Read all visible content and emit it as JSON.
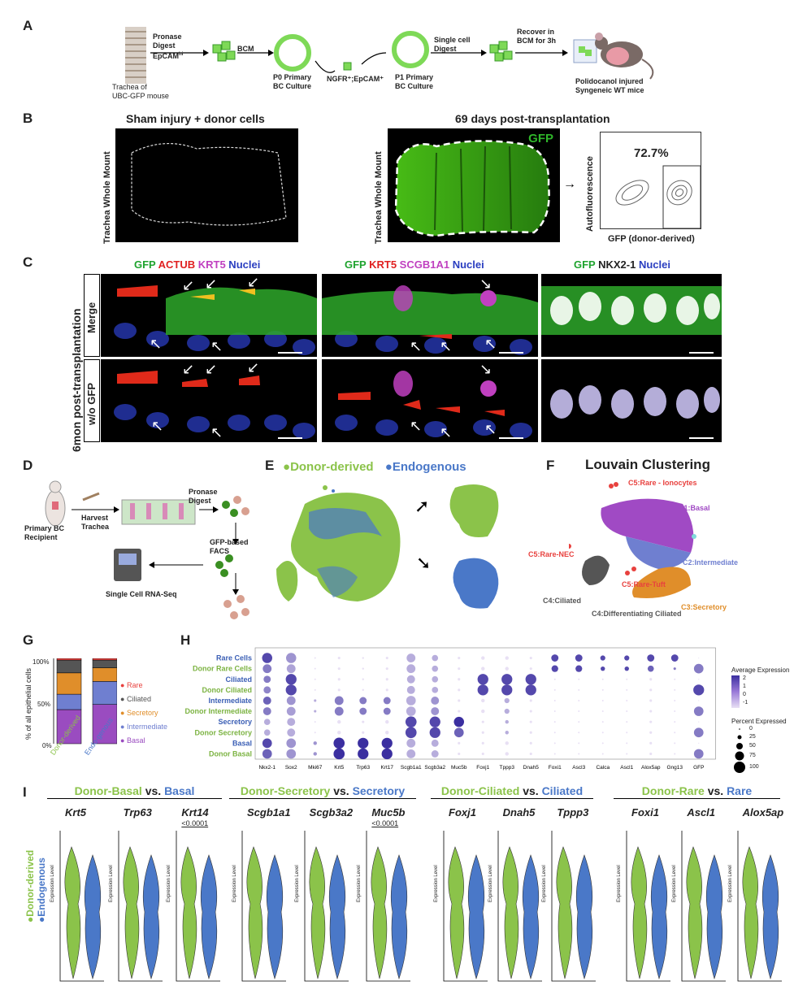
{
  "panelA": {
    "letter": "A",
    "trachea_label_1": "Trachea of",
    "trachea_label_2": "UBC-GFP mouse",
    "step1_1": "Pronase",
    "step1_2": "Digest",
    "step1_3": "EpCAM",
    "step1_3_sup": "hi",
    "step2": "BCM",
    "p0_1": "P0 Primary",
    "p0_2": "BC Culture",
    "ngfr": "NGFR⁺;EpCAM⁺",
    "step3_1": "Single cell",
    "step3_2": "Digest",
    "p1_1": "P1 Primary",
    "p1_2": "BC Culture",
    "step4_1": "Recover in",
    "step4_2": "BCM for 3h",
    "mouse_1": "Polidocanol injured",
    "mouse_2": "Syngeneic WT mice"
  },
  "panelB": {
    "letter": "B",
    "title_left": "Sham injury + donor cells",
    "title_right": "69 days post-transplantation",
    "ylab": "Trachea Whole Mount",
    "gfp": "GFP",
    "percent": "72.7%",
    "flow_y": "Autofluorescence",
    "flow_x": "GFP (donor-derived)"
  },
  "panelC": {
    "letter": "C",
    "side_label": "6mon post-transplantation",
    "row1": "Merge",
    "row2": "w/o GFP",
    "col1": [
      {
        "t": "GFP",
        "c": "#1fa32e"
      },
      {
        "t": " ACTUB",
        "c": "#e02020"
      },
      {
        "t": " KRT5",
        "c": "#c040c0"
      },
      {
        "t": " Nuclei",
        "c": "#2a3ec0"
      }
    ],
    "col2": [
      {
        "t": "GFP",
        "c": "#1fa32e"
      },
      {
        "t": " KRT5",
        "c": "#e02020"
      },
      {
        "t": " SCGB1A1",
        "c": "#c040c0"
      },
      {
        "t": " Nuclei",
        "c": "#2a3ec0"
      }
    ],
    "col3": [
      {
        "t": "GFP",
        "c": "#1fa32e"
      },
      {
        "t": " NKX2-1",
        "c": "#222222"
      },
      {
        "t": " Nuclei",
        "c": "#2a3ec0"
      }
    ]
  },
  "panelD": {
    "letter": "D",
    "recipient_1": "Primary BC",
    "recipient_2": "Recipient",
    "harvest_1": "Harvest",
    "harvest_2": "Trachea",
    "digest_1": "Pronase",
    "digest_2": "Digest",
    "facs_1": "GFP-based",
    "facs_2": "FACS",
    "seq": "Single Cell RNA-Seq"
  },
  "panelE": {
    "letter": "E",
    "legend_donor": "Donor-derived",
    "legend_endo": "Endogenous"
  },
  "panelF": {
    "letter": "F",
    "title": "Louvain Clustering",
    "labels": [
      {
        "t": "C5:Rare - Ionocytes",
        "c": "#e8413e"
      },
      {
        "t": "C1:Basal",
        "c": "#a04ac4"
      },
      {
        "t": "C5:Rare-NEC",
        "c": "#e8413e"
      },
      {
        "t": "C2:Intermediate",
        "c": "#6f7fd0"
      },
      {
        "t": "C5:Rare-Tuft",
        "c": "#e8413e"
      },
      {
        "t": "C4:Ciliated",
        "c": "#555555"
      },
      {
        "t": "C3:Secretory",
        "c": "#e08e2a"
      },
      {
        "t": "C4:Differentiating Ciliated",
        "c": "#555555"
      }
    ]
  },
  "panelG": {
    "letter": "G",
    "ylabel": "% of all epithelial cells",
    "yticks": [
      "100%",
      "50%",
      "0%"
    ],
    "xlabels": [
      "Donor-derived",
      "Endo-genous"
    ],
    "legend": [
      {
        "t": "Rare",
        "c": "#e8413e"
      },
      {
        "t": "Ciliated",
        "c": "#555555"
      },
      {
        "t": "Secretory",
        "c": "#e08e2a"
      },
      {
        "t": "Intermediate",
        "c": "#6f7fd0"
      },
      {
        "t": "Basal",
        "c": "#9a4cc0"
      }
    ]
  },
  "panelH": {
    "letter": "H",
    "legend_expr_title": "Average Expression",
    "legend_expr_ticks": [
      "2",
      "1",
      "0",
      "-1"
    ],
    "legend_pct_title": "Percent Expressed",
    "legend_pct_ticks": [
      "0",
      "25",
      "50",
      "75",
      "100"
    ]
  },
  "panelI": {
    "letter": "I",
    "side_donor": "Donor-derived",
    "side_endo": "Endogenous",
    "ylabel": "Expression Level",
    "groups": [
      {
        "a": "Donor-Basal",
        "b": "Basal",
        "genes": [
          "Krt5",
          "Trp63",
          "Krt14"
        ],
        "pval": "<0.0001",
        "pidx": 2
      },
      {
        "a": "Donor-Secretory",
        "b": "Secretory",
        "genes": [
          "Scgb1a1",
          "Scgb3a2",
          "Muc5b"
        ],
        "pval": "<0.0001",
        "pidx": 2
      },
      {
        "a": "Donor-Ciliated",
        "b": "Ciliated",
        "genes": [
          "Foxj1",
          "Dnah5",
          "Tppp3"
        ],
        "pval": "",
        "pidx": -1
      },
      {
        "a": "Donor-Rare",
        "b": "Rare",
        "genes": [
          "Foxi1",
          "Ascl1",
          "Alox5ap"
        ],
        "pval": "",
        "pidx": -1
      }
    ],
    "vs": "vs."
  },
  "chart_data": [
    {
      "type": "bar",
      "id": "G",
      "categories": [
        "Donor-derived",
        "Endo-genous"
      ],
      "series": [
        {
          "name": "Basal",
          "values": [
            40,
            46
          ]
        },
        {
          "name": "Intermediate",
          "values": [
            18,
            27
          ]
        },
        {
          "name": "Secretory",
          "values": [
            25,
            16
          ]
        },
        {
          "name": "Ciliated",
          "values": [
            15,
            9
          ]
        },
        {
          "name": "Rare",
          "values": [
            2,
            2
          ]
        }
      ],
      "ylabel": "% of all epithelial cells",
      "ylim": [
        0,
        100
      ]
    },
    {
      "type": "scatter",
      "id": "H",
      "rows": [
        "Rare Cells",
        "Donor Rare Cells",
        "Ciliated",
        "Donor Ciliated",
        "Intermediate",
        "Donor Intermediate",
        "Secretory",
        "Donor Secretory",
        "Basal",
        "Donor Basal"
      ],
      "row_colors": [
        "#3b5fb5",
        "#7cb342",
        "#3b5fb5",
        "#7cb342",
        "#3b5fb5",
        "#7cb342",
        "#3b5fb5",
        "#7cb342",
        "#3b5fb5",
        "#7cb342"
      ],
      "genes": [
        "Nkx2-1",
        "Sox2",
        "Mki67",
        "Krt5",
        "Trp63",
        "Krt17",
        "Scgb1a1",
        "Scgb3a2",
        "Muc5b",
        "Foxj1",
        "Tppp3",
        "Dnah5",
        "Foxi1",
        "Ascl3",
        "Calca",
        "Ascl1",
        "Alox5ap",
        "Gng13",
        "GFP"
      ],
      "pct": [
        [
          80,
          80,
          2,
          5,
          3,
          5,
          60,
          30,
          5,
          10,
          10,
          5,
          40,
          40,
          20,
          20,
          40,
          40,
          0
        ],
        [
          60,
          60,
          2,
          5,
          3,
          5,
          60,
          30,
          5,
          10,
          10,
          5,
          35,
          35,
          15,
          15,
          30,
          5,
          70
        ],
        [
          40,
          90,
          2,
          5,
          3,
          5,
          50,
          30,
          5,
          90,
          90,
          90,
          2,
          2,
          2,
          2,
          5,
          2,
          0
        ],
        [
          40,
          90,
          2,
          5,
          3,
          5,
          50,
          30,
          5,
          90,
          90,
          90,
          2,
          2,
          2,
          2,
          5,
          2,
          90
        ],
        [
          50,
          60,
          5,
          60,
          40,
          40,
          70,
          50,
          5,
          10,
          20,
          5,
          2,
          2,
          2,
          2,
          5,
          2,
          0
        ],
        [
          50,
          60,
          5,
          60,
          40,
          40,
          70,
          50,
          5,
          10,
          20,
          5,
          2,
          2,
          2,
          2,
          5,
          2,
          70
        ],
        [
          30,
          50,
          2,
          10,
          5,
          10,
          95,
          90,
          80,
          5,
          10,
          5,
          2,
          2,
          2,
          2,
          5,
          2,
          0
        ],
        [
          30,
          50,
          2,
          10,
          5,
          10,
          95,
          90,
          70,
          5,
          10,
          5,
          2,
          2,
          2,
          2,
          5,
          2,
          70
        ],
        [
          70,
          70,
          10,
          95,
          90,
          90,
          60,
          40,
          5,
          5,
          10,
          5,
          2,
          2,
          2,
          2,
          5,
          2,
          0
        ],
        [
          70,
          70,
          10,
          95,
          90,
          90,
          60,
          40,
          5,
          5,
          10,
          5,
          2,
          2,
          2,
          2,
          5,
          2,
          70
        ]
      ],
      "expr": [
        [
          2,
          0.5,
          -1,
          -1,
          -1,
          -1,
          0,
          0,
          -1,
          -1,
          -1,
          -1,
          2,
          2,
          2,
          2,
          2,
          2,
          -1
        ],
        [
          1,
          0.2,
          -1,
          -1,
          -1,
          -1,
          0,
          0,
          -1,
          -1,
          -1,
          -1,
          2,
          2,
          2,
          2,
          1.5,
          1,
          1
        ],
        [
          1,
          2,
          -1,
          -1,
          -1,
          -1,
          0,
          0,
          -1,
          2,
          2,
          2,
          -1,
          -1,
          -1,
          -1,
          -1,
          -1,
          -1
        ],
        [
          0.8,
          2,
          -1,
          -1,
          -1,
          -1,
          0,
          0,
          -1,
          2,
          2,
          2,
          -1,
          -1,
          -1,
          -1,
          -1,
          -1,
          2
        ],
        [
          1.5,
          0.5,
          0,
          1,
          1,
          1,
          0,
          0.5,
          -1,
          -1,
          0,
          -1,
          -1,
          -1,
          -1,
          -1,
          -1,
          -1,
          -1
        ],
        [
          1,
          0.3,
          0,
          1,
          1,
          1,
          0,
          0.5,
          -1,
          -1,
          0,
          -1,
          -1,
          -1,
          -1,
          -1,
          -1,
          -1,
          1
        ],
        [
          0,
          0,
          -1,
          -1,
          -1,
          -1,
          2,
          2,
          2.5,
          -1,
          0,
          -1,
          -1,
          -1,
          -1,
          -1,
          -1,
          -1,
          -1
        ],
        [
          0,
          0,
          -1,
          -1,
          -1,
          -1,
          2,
          2,
          1.5,
          -1,
          0,
          -1,
          -1,
          -1,
          -1,
          -1,
          -1,
          -1,
          1
        ],
        [
          2,
          0.5,
          0.5,
          2.5,
          2.5,
          2.5,
          0,
          0,
          -1,
          -1,
          -1,
          -1,
          -1,
          -1,
          -1,
          -1,
          -1,
          -1,
          -1
        ],
        [
          1.5,
          0.5,
          0.5,
          2.5,
          2.5,
          2.5,
          0,
          0,
          -1,
          -1,
          -1,
          -1,
          -1,
          -1,
          -1,
          -1,
          -1,
          -1,
          1
        ]
      ]
    }
  ],
  "colors": {
    "donor": "#8bc34a",
    "endo": "#4a78c8",
    "gfp": "#2fb52a"
  }
}
